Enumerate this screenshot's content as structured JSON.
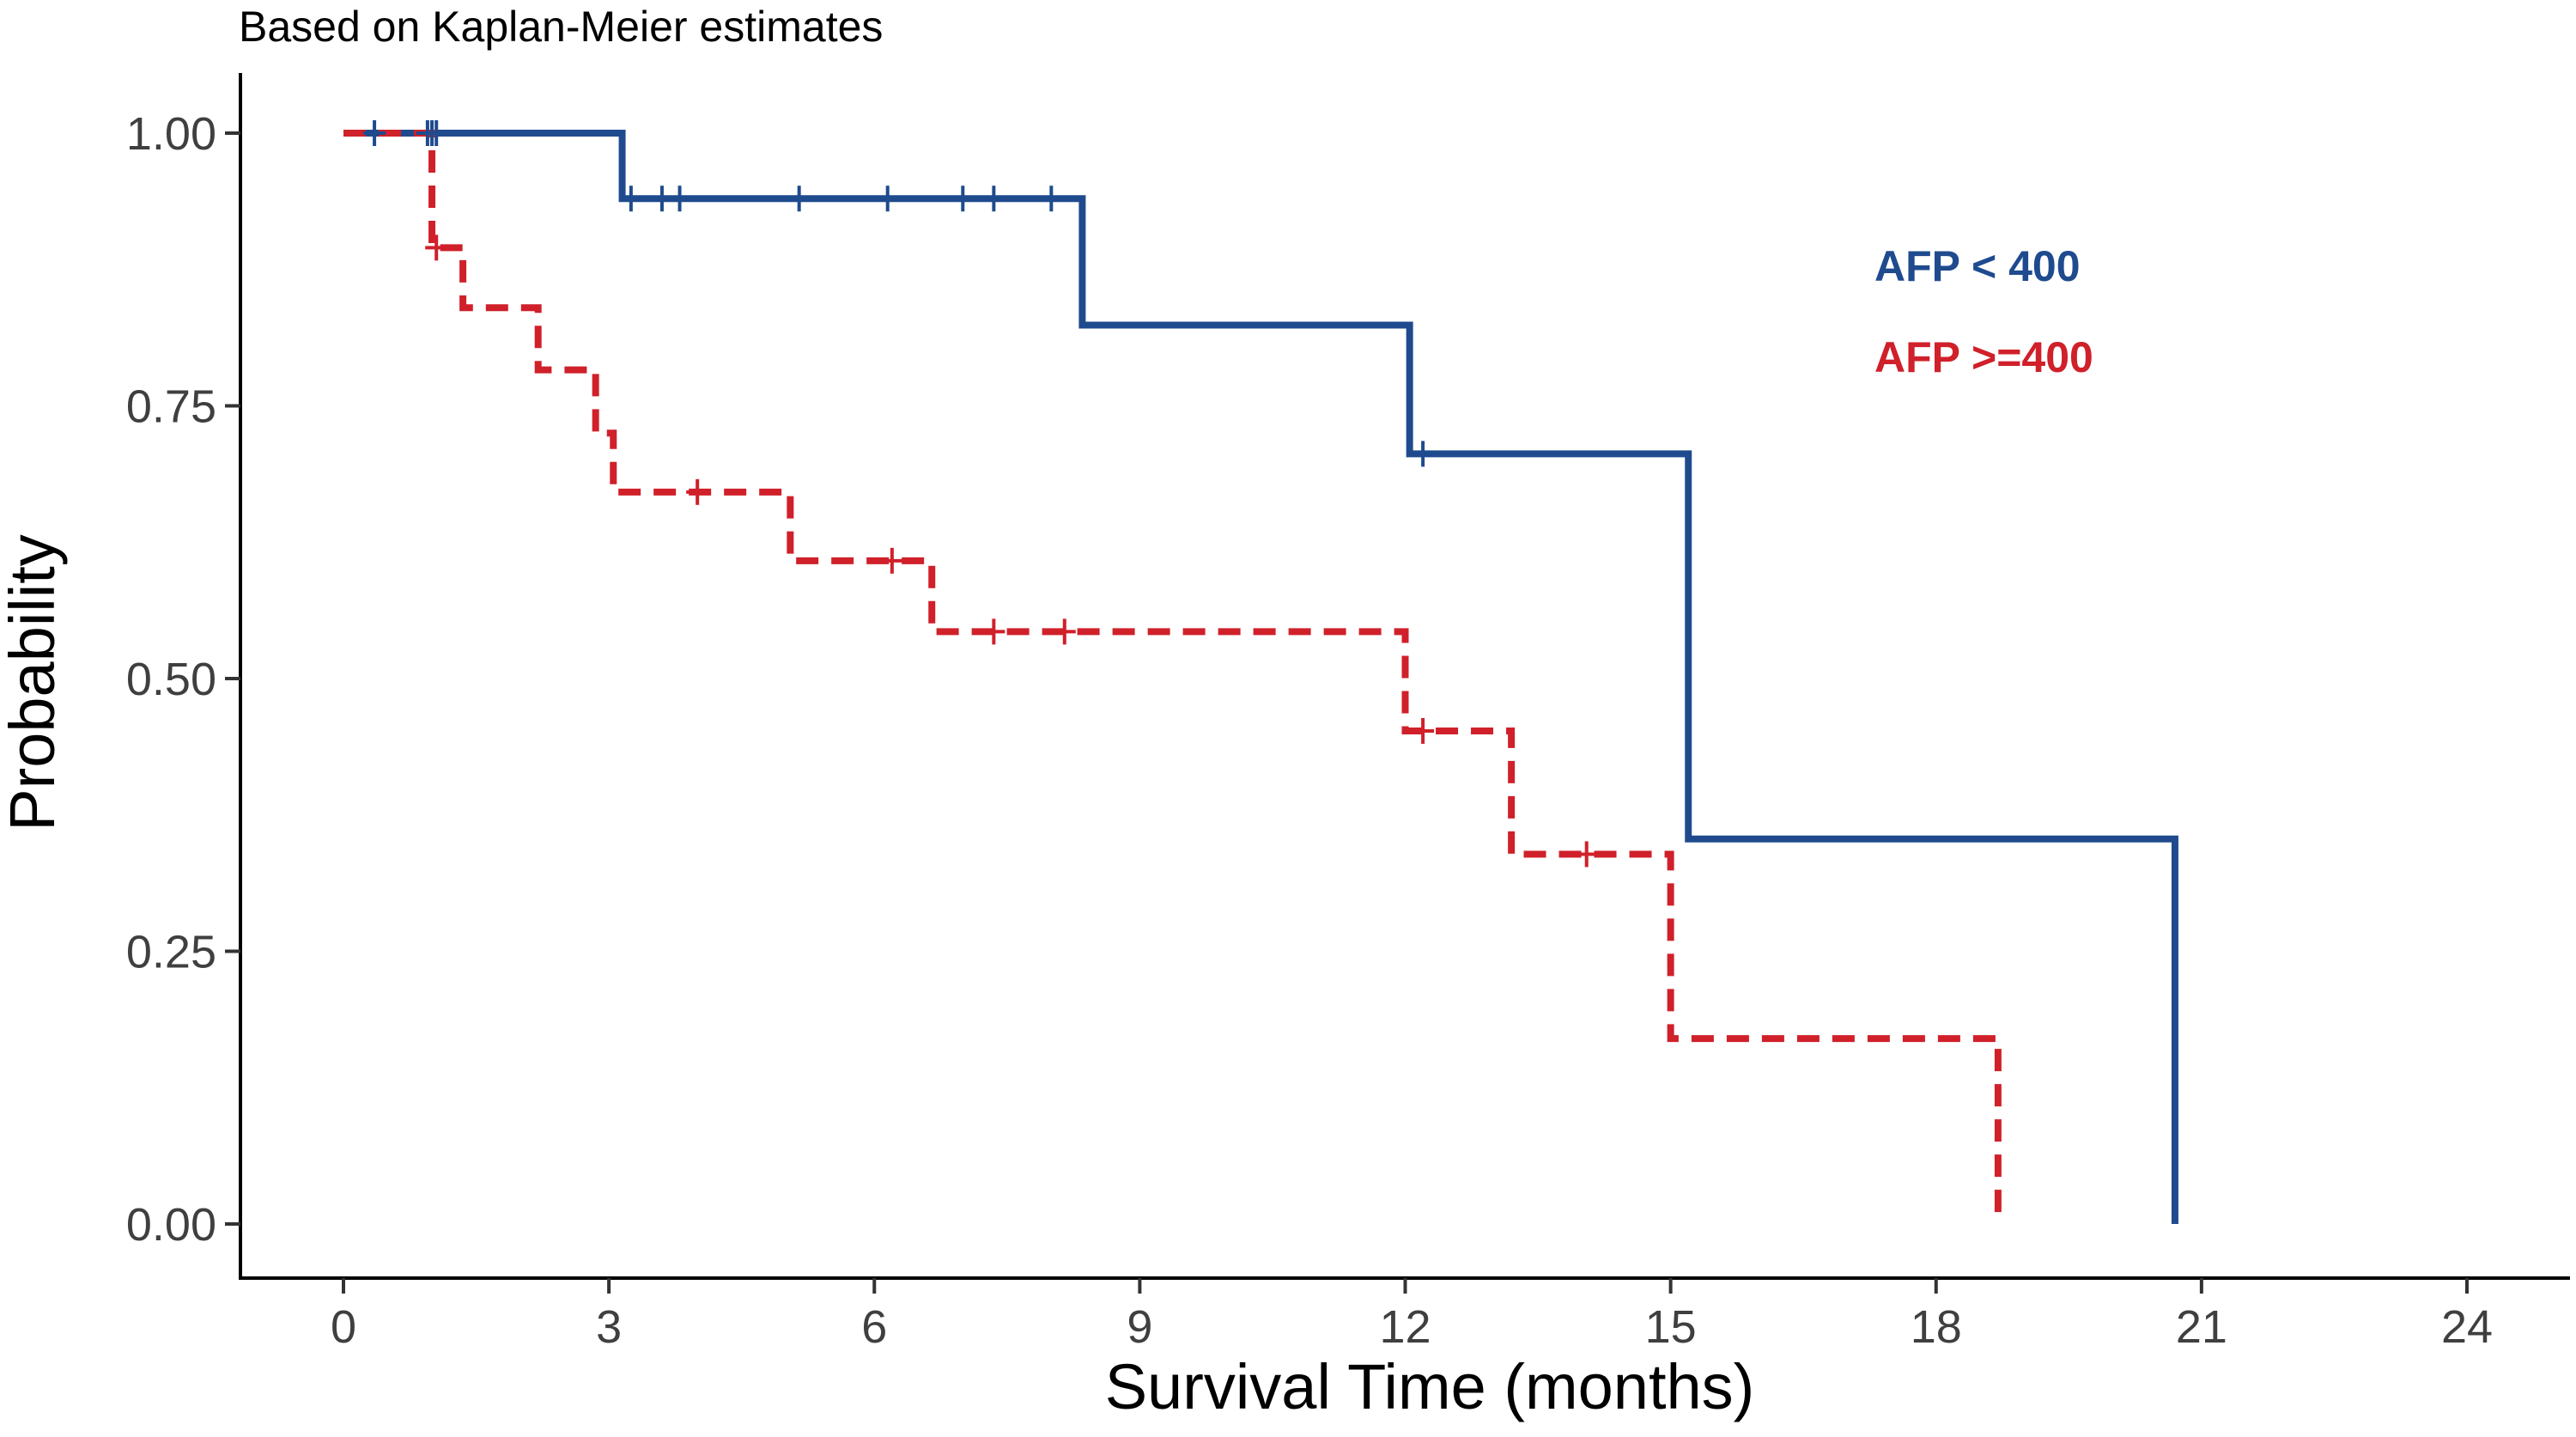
{
  "chart_data": {
    "type": "line",
    "subtitle": "Based on Kaplan-Meier estimates",
    "xlabel": "Survival Time (months)",
    "ylabel": "Probability",
    "xlim": [
      0,
      24
    ],
    "ylim": [
      0,
      1
    ],
    "x_ticks": [
      0,
      3,
      6,
      9,
      12,
      15,
      18,
      21,
      24
    ],
    "y_ticks": [
      0.0,
      0.25,
      0.5,
      0.75,
      1.0
    ],
    "y_tick_labels": [
      "0.00",
      "0.25",
      "0.50",
      "0.75",
      "1.00"
    ],
    "grid": false,
    "legend_position": "top-right",
    "series": [
      {
        "name": "AFP < 400",
        "color": "#1f4b8e",
        "line_style": "solid",
        "steps": [
          [
            0,
            1.0
          ],
          [
            3.15,
            0.94
          ],
          [
            8.35,
            0.824
          ],
          [
            12.05,
            0.706
          ],
          [
            15.2,
            0.353
          ],
          [
            20.7,
            0.0
          ]
        ],
        "end_x": 20.7,
        "censored": [
          [
            0.35,
            1.0
          ],
          [
            0.95,
            1.0
          ],
          [
            1.0,
            1.0
          ],
          [
            1.05,
            1.0
          ],
          [
            3.25,
            0.94
          ],
          [
            3.6,
            0.94
          ],
          [
            3.8,
            0.94
          ],
          [
            5.15,
            0.94
          ],
          [
            6.15,
            0.94
          ],
          [
            7.0,
            0.94
          ],
          [
            7.35,
            0.94
          ],
          [
            8.0,
            0.94
          ],
          [
            12.2,
            0.706
          ]
        ]
      },
      {
        "name": "AFP >=400",
        "color": "#d0202a",
        "line_style": "dashed",
        "steps": [
          [
            0,
            1.0
          ],
          [
            1.0,
            0.895
          ],
          [
            1.35,
            0.84
          ],
          [
            2.2,
            0.783
          ],
          [
            2.85,
            0.725
          ],
          [
            3.05,
            0.671
          ],
          [
            5.05,
            0.608
          ],
          [
            6.65,
            0.543
          ],
          [
            12.0,
            0.452
          ],
          [
            13.2,
            0.339
          ],
          [
            15.0,
            0.17
          ],
          [
            18.7,
            0.0
          ]
        ],
        "end_x": 18.7,
        "censored": [
          [
            1.05,
            0.895
          ],
          [
            4.0,
            0.671
          ],
          [
            6.2,
            0.608
          ],
          [
            7.35,
            0.543
          ],
          [
            8.15,
            0.543
          ],
          [
            12.2,
            0.452
          ],
          [
            14.05,
            0.339
          ]
        ]
      }
    ]
  }
}
